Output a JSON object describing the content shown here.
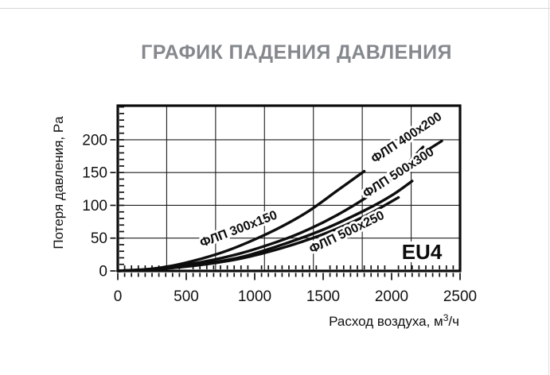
{
  "title": {
    "text": "ГРАФИК ПАДЕНИЯ ДАВЛЕНИЯ",
    "color": "#85888d"
  },
  "chart_data": {
    "type": "line",
    "title": "ГРАФИК ПАДЕНИЯ ДАВЛЕНИЯ",
    "xlabel_prefix": "Расход воздуха, м",
    "xlabel_sup": "3",
    "xlabel_suffix": "/ч",
    "ylabel": "Потеря давления, Pa",
    "xlim": [
      0,
      2500
    ],
    "ylim": [
      0,
      252
    ],
    "xticks": [
      "0",
      "500",
      "1000",
      "1500",
      "2000",
      "2500"
    ],
    "xtick_values": [
      0,
      500,
      1000,
      1500,
      2000,
      2500
    ],
    "yticks": [
      "0",
      "50",
      "100",
      "150",
      "200"
    ],
    "ytick_values": [
      0,
      50,
      100,
      150,
      200
    ],
    "x_minor_step": 50,
    "y_minor_step": 10,
    "grid": {
      "show": true,
      "vertical_equal_divisions": 7,
      "horizontal_at": [
        50,
        100,
        150,
        200
      ],
      "note": "vertical gridlines split plot into 7 equal columns and do not align with x tick labels"
    },
    "line_color": "#0d0d0d",
    "filter_class_annotation": {
      "text": "EU4",
      "x": 530,
      "y": 326
    },
    "series": [
      {
        "name": "ФЛП 300x150",
        "slug": "flp-300x150",
        "points": [
          [
            0,
            0
          ],
          [
            200,
            2
          ],
          [
            400,
            8
          ],
          [
            600,
            18
          ],
          [
            800,
            31
          ],
          [
            1000,
            48
          ],
          [
            1200,
            68
          ],
          [
            1400,
            92
          ],
          [
            1600,
            122
          ],
          [
            1800,
            152
          ]
        ],
        "label": {
          "x": 300,
          "y": 289,
          "rot": -21
        }
      },
      {
        "name": "ФЛП 400x200",
        "slug": "flp-400x200",
        "points": [
          [
            0,
            0
          ],
          [
            300,
            4
          ],
          [
            600,
            13
          ],
          [
            900,
            27
          ],
          [
            1200,
            47
          ],
          [
            1400,
            64
          ],
          [
            1600,
            85
          ],
          [
            1800,
            110
          ],
          [
            2000,
            140
          ],
          [
            2230,
            189
          ]
        ],
        "label": {
          "x": 511,
          "y": 174,
          "rot": -33.5
        }
      },
      {
        "name": "ФЛП 500x300",
        "slug": "flp-500x300",
        "points": [
          [
            0,
            0
          ],
          [
            300,
            3
          ],
          [
            600,
            10
          ],
          [
            900,
            21
          ],
          [
            1200,
            40
          ],
          [
            1500,
            63
          ],
          [
            1800,
            92
          ],
          [
            2000,
            115
          ],
          [
            2150,
            137
          ]
        ],
        "label": {
          "x": 501,
          "y": 218,
          "rot": -33,
          "dash": {
            "x1": 540,
            "y1": 187,
            "x2": 555,
            "y2": 177.5
          }
        }
      },
      {
        "name": "ФЛП 500x250",
        "slug": "flp-500x250",
        "points": [
          [
            0,
            0
          ],
          [
            300,
            3
          ],
          [
            600,
            9
          ],
          [
            900,
            19
          ],
          [
            1200,
            35
          ],
          [
            1500,
            56
          ],
          [
            1800,
            83
          ],
          [
            2050,
            112
          ]
        ],
        "label": {
          "x": 436,
          "y": 293,
          "rot": -26
        }
      }
    ]
  }
}
